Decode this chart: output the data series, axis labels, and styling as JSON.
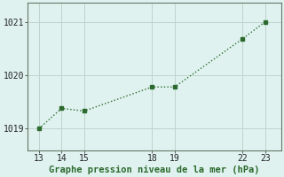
{
  "x": [
    13,
    14,
    15,
    18,
    19,
    22,
    23
  ],
  "y": [
    1019.0,
    1019.38,
    1019.33,
    1019.78,
    1019.78,
    1020.68,
    1021.0
  ],
  "line_color": "#2d6a2d",
  "marker": "s",
  "marker_size": 3,
  "background_color": "#dff2f0",
  "grid_color": "#c0d4cc",
  "xlabel": "Graphe pression niveau de la mer (hPa)",
  "xlabel_color": "#2d6a2d",
  "xlabel_fontsize": 7.5,
  "xticks": [
    13,
    14,
    15,
    18,
    19,
    22,
    23
  ],
  "yticks": [
    1019,
    1020,
    1021
  ],
  "ylim": [
    1018.6,
    1021.35
  ],
  "xlim": [
    12.5,
    23.7
  ],
  "tick_fontsize": 7,
  "tick_color": "#222222",
  "line_width": 1.0,
  "spine_color": "#667766",
  "figsize": [
    3.2,
    2.0
  ],
  "dpi": 100
}
